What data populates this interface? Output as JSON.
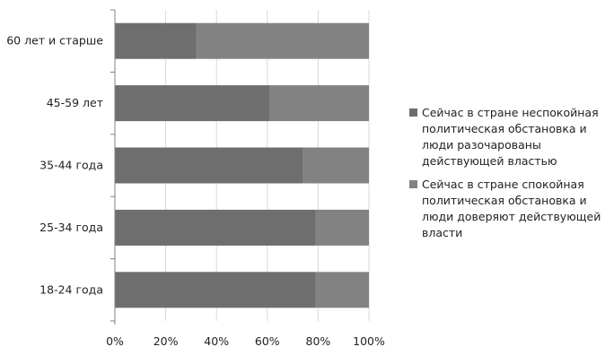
{
  "chart_data": {
    "type": "bar",
    "orientation": "horizontal",
    "stacked": "percent",
    "categories": [
      "60 лет и старше",
      "45-59 лет",
      "35-44 года",
      "25-34 года",
      "18-24 года"
    ],
    "series": [
      {
        "name": "Сейчас в стране неспокойная политическая обстановка и люди разочарованы действующей властью",
        "color": "#6e6e6e",
        "values": [
          32,
          61,
          74,
          79,
          79
        ]
      },
      {
        "name": "Сейчас в стране спокойная политическая обстановка и люди доверяют действующей власти",
        "color": "#828282",
        "values": [
          68,
          39,
          26,
          21,
          21
        ]
      }
    ],
    "xlim": [
      0,
      100
    ],
    "x_ticks": [
      "0%",
      "20%",
      "40%",
      "60%",
      "80%",
      "100%"
    ],
    "grid": true,
    "legend_position": "right"
  }
}
